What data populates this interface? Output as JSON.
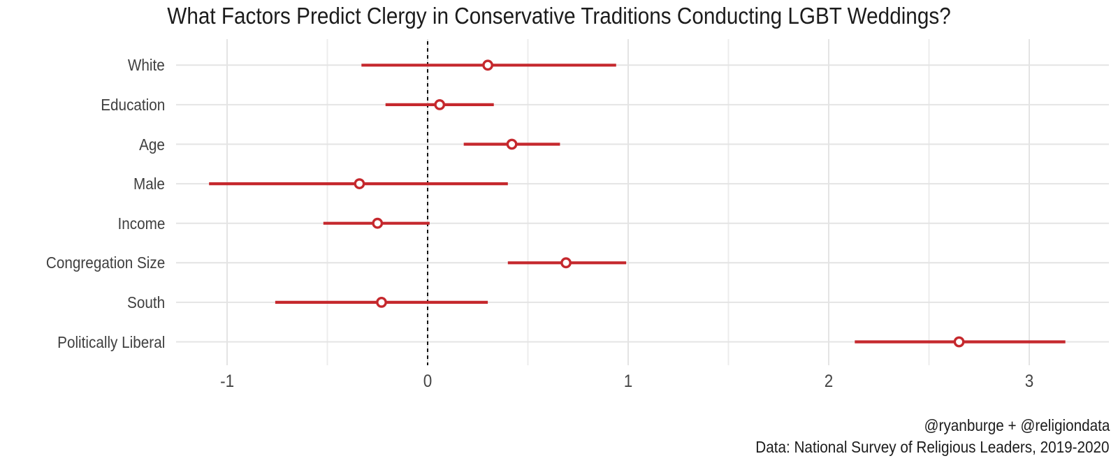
{
  "title": "What Factors Predict Clergy in Conservative Traditions Conducting LGBT Weddings?",
  "caption": {
    "line1": "@ryanburge + @religiondata",
    "line2": "Data: National Survey of Religious Leaders, 2019-2020"
  },
  "colors": {
    "accent_red": "#C5282D",
    "grid_major": "#E4E4E4",
    "grid_minor": "#ECECEC",
    "reference_line": "#111111",
    "title_text": "#1C1C1C",
    "axis_text": "#3F3F3F",
    "tick_text": "#454545",
    "point_fill": "#FFFFFF"
  },
  "chart_data": {
    "type": "scatter",
    "subtype": "dot-whisker-coefficient-plot",
    "title": "What Factors Predict Clergy in Conservative Traditions Conducting LGBT Weddings?",
    "categories": [
      "White",
      "Education",
      "Age",
      "Male",
      "Income",
      "Congregation Size",
      "South",
      "Politically Liberal"
    ],
    "points": [
      {
        "label": "White",
        "estimate": 0.3,
        "ci_low": -0.33,
        "ci_high": 0.94
      },
      {
        "label": "Education",
        "estimate": 0.06,
        "ci_low": -0.21,
        "ci_high": 0.33
      },
      {
        "label": "Age",
        "estimate": 0.42,
        "ci_low": 0.18,
        "ci_high": 0.66
      },
      {
        "label": "Male",
        "estimate": -0.34,
        "ci_low": -1.09,
        "ci_high": 0.4
      },
      {
        "label": "Income",
        "estimate": -0.25,
        "ci_low": -0.52,
        "ci_high": 0.01
      },
      {
        "label": "Congregation Size",
        "estimate": 0.69,
        "ci_low": 0.4,
        "ci_high": 0.99
      },
      {
        "label": "South",
        "estimate": -0.23,
        "ci_low": -0.76,
        "ci_high": 0.3
      },
      {
        "label": "Politically Liberal",
        "estimate": 2.65,
        "ci_low": 2.13,
        "ci_high": 3.18
      }
    ],
    "x_axis": {
      "ticks": [
        -1,
        0,
        1,
        2,
        3
      ],
      "minor_ticks": [
        -0.5,
        0.5,
        1.5,
        2.5
      ],
      "range": [
        -1.26,
        3.4
      ]
    },
    "reference_line_x": 0,
    "grid": true,
    "legend": false,
    "point_style": "open-circle",
    "xlabel": "",
    "ylabel": ""
  }
}
